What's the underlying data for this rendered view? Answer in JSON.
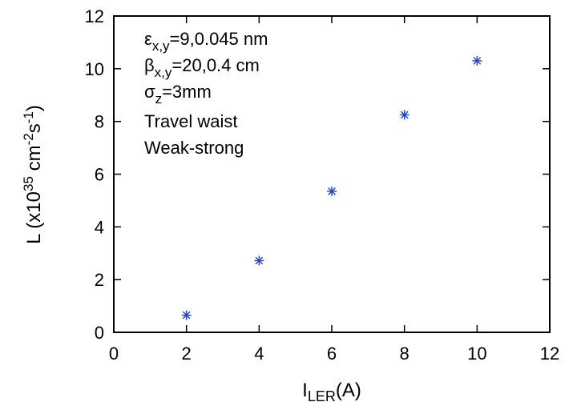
{
  "chart_data": {
    "type": "scatter",
    "xlim": [
      0,
      12
    ],
    "ylim": [
      0,
      12
    ],
    "x_ticks": [
      0,
      2,
      4,
      6,
      8,
      10,
      12
    ],
    "y_ticks": [
      0,
      2,
      4,
      6,
      8,
      10,
      12
    ],
    "grid": false,
    "xlabel": {
      "main": "I",
      "sub": "LER",
      "unit": "(A)"
    },
    "ylabel": {
      "pre": "L (x10",
      "exp1": "35",
      "mid": " cm",
      "exp2": "-2",
      "mid2": "s",
      "exp3": "-1",
      "post": ")"
    },
    "series": [
      {
        "marker": "asterisk",
        "color": "#1f3fd6",
        "points": [
          {
            "x": 2,
            "y": 0.65
          },
          {
            "x": 4,
            "y": 2.72
          },
          {
            "x": 6,
            "y": 5.35
          },
          {
            "x": 8,
            "y": 8.25
          },
          {
            "x": 10,
            "y": 10.3
          }
        ]
      }
    ],
    "annotations": {
      "line1": {
        "sym": "ε",
        "sub": "x,y",
        "text": "=9,0.045 nm"
      },
      "line2": {
        "sym": "β",
        "sub": "x,y",
        "text": "=20,0.4 cm"
      },
      "line3": {
        "sym": "σ",
        "sub": "z",
        "text": "=3mm"
      },
      "line4": "Travel waist",
      "line5": "Weak-strong"
    }
  }
}
